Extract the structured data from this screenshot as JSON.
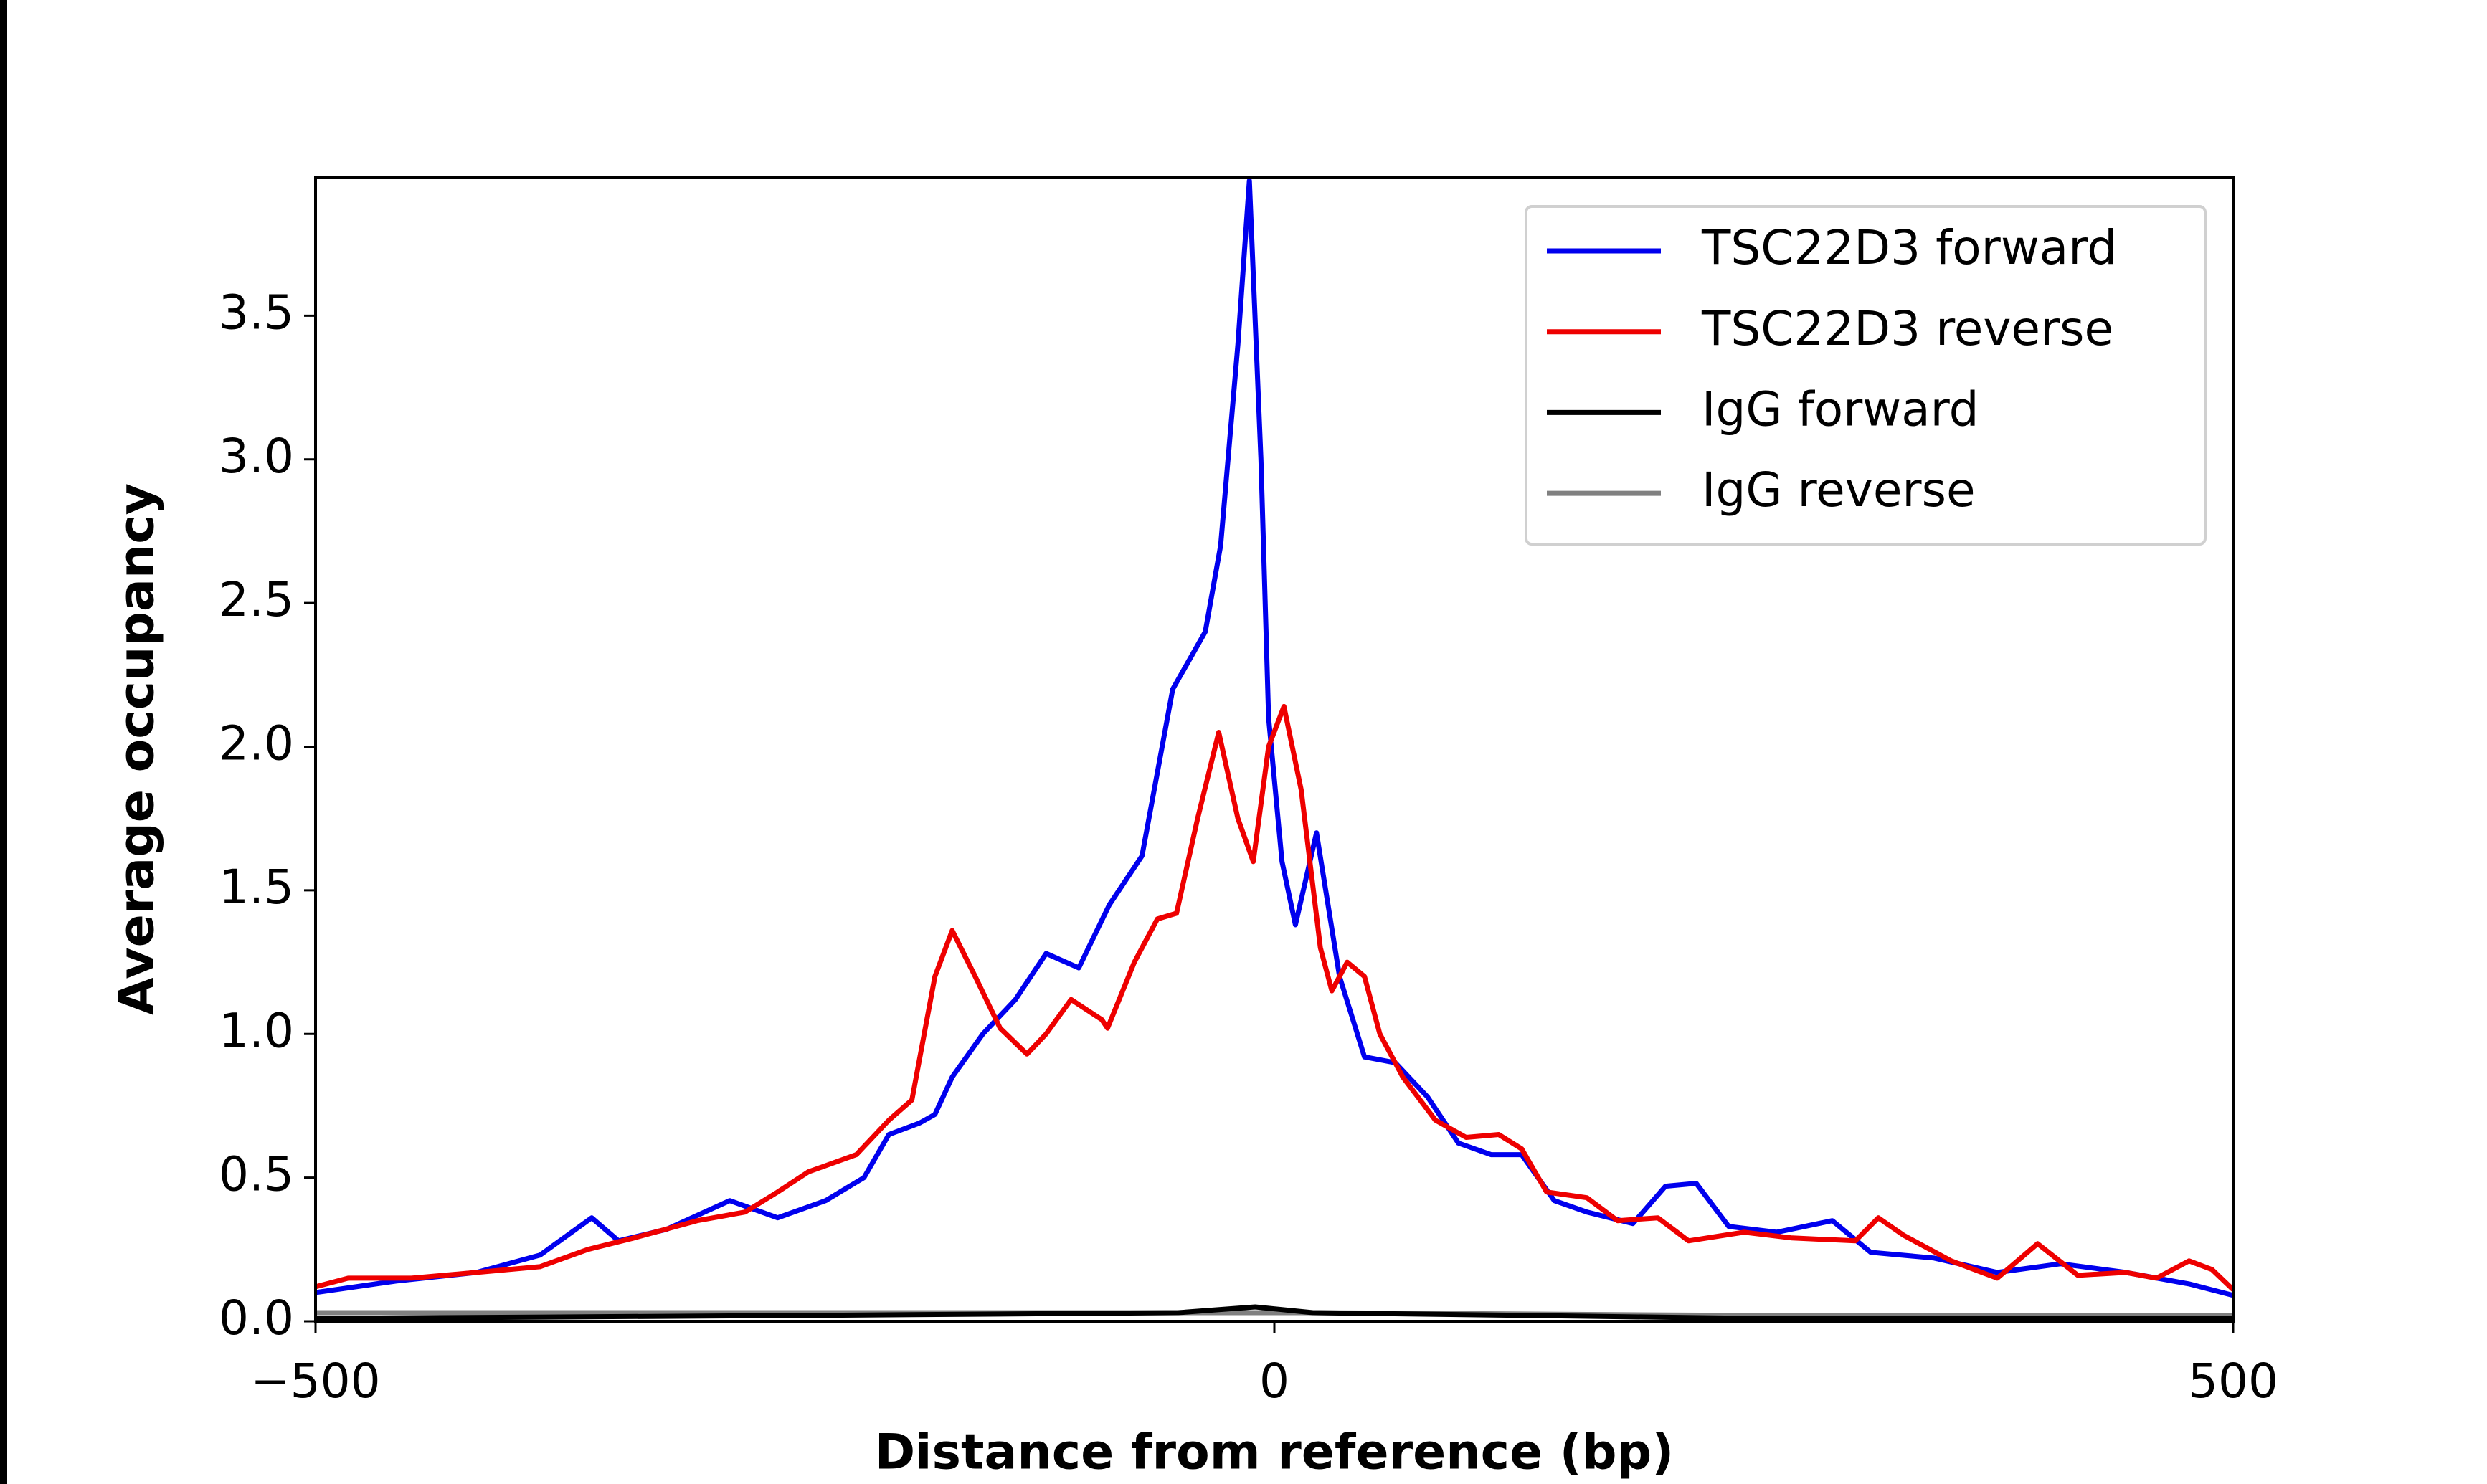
{
  "chart_data": {
    "type": "line",
    "xlabel": "Distance from reference (bp)",
    "ylabel": "Average occupancy",
    "xlim": [
      -500,
      500
    ],
    "xticks": [
      {
        "value": -500,
        "label": "−500"
      },
      0,
      500
    ],
    "ylim": [
      0,
      3.98
    ],
    "yticks": [
      {
        "value": 0,
        "label": "0.0"
      },
      0.5,
      {
        "value": 1,
        "label": "1.0"
      },
      1.5,
      {
        "value": 2,
        "label": "2.0"
      },
      2.5,
      {
        "value": 3,
        "label": "3.0"
      },
      3.5
    ],
    "legend": "upper right",
    "series": [
      {
        "name": "TSC22D3 forward",
        "color": "#0000ee",
        "x": [
          -500,
          -458,
          -416,
          -383,
          -356,
          -342,
          -317,
          -284,
          -259,
          -234,
          -214,
          -201,
          -185,
          -177,
          -168,
          -152,
          -135,
          -119,
          -102,
          -86,
          -69,
          -53,
          -36,
          -28,
          -19,
          -13,
          -7,
          -3,
          4,
          11,
          22,
          34,
          47,
          63,
          80,
          96,
          113,
          129,
          146,
          163,
          187,
          204,
          220,
          237,
          262,
          291,
          311,
          344,
          377,
          410,
          444,
          477,
          500
        ],
        "values": [
          0.1,
          0.14,
          0.17,
          0.23,
          0.36,
          0.28,
          0.32,
          0.42,
          0.36,
          0.42,
          0.5,
          0.65,
          0.69,
          0.72,
          0.85,
          1.0,
          1.12,
          1.28,
          1.23,
          1.45,
          1.62,
          2.2,
          2.4,
          2.7,
          3.4,
          3.97,
          3.0,
          2.1,
          1.6,
          1.38,
          1.7,
          1.2,
          0.92,
          0.9,
          0.78,
          0.62,
          0.58,
          0.58,
          0.42,
          0.38,
          0.34,
          0.47,
          0.48,
          0.33,
          0.31,
          0.35,
          0.24,
          0.22,
          0.17,
          0.2,
          0.17,
          0.13,
          0.09
        ]
      },
      {
        "name": "TSC22D3 reverse",
        "color": "#ee0000",
        "x": [
          -500,
          -483,
          -450,
          -416,
          -383,
          -358,
          -334,
          -301,
          -276,
          -259,
          -243,
          -218,
          -201,
          -189,
          -177,
          -168,
          -156,
          -143,
          -129,
          -119,
          -106,
          -90,
          -87,
          -73,
          -61,
          -51,
          -40,
          -29,
          -19,
          -11,
          -3,
          5,
          14,
          24,
          30,
          38,
          47,
          55,
          67,
          84,
          100,
          117,
          129,
          142,
          163,
          179,
          200,
          216,
          245,
          270,
          303,
          315,
          328,
          353,
          377,
          398,
          419,
          444,
          460,
          477,
          489,
          500
        ],
        "values": [
          0.12,
          0.15,
          0.15,
          0.17,
          0.19,
          0.25,
          0.29,
          0.35,
          0.38,
          0.45,
          0.52,
          0.58,
          0.7,
          0.77,
          1.2,
          1.36,
          1.2,
          1.02,
          0.93,
          1.0,
          1.12,
          1.05,
          1.02,
          1.25,
          1.4,
          1.42,
          1.75,
          2.05,
          1.75,
          1.6,
          2.0,
          2.14,
          1.85,
          1.3,
          1.15,
          1.25,
          1.2,
          1.0,
          0.85,
          0.7,
          0.64,
          0.65,
          0.6,
          0.45,
          0.43,
          0.35,
          0.36,
          0.28,
          0.31,
          0.29,
          0.28,
          0.36,
          0.3,
          0.21,
          0.15,
          0.27,
          0.16,
          0.17,
          0.15,
          0.21,
          0.18,
          0.11
        ]
      },
      {
        "name": "IgG forward",
        "color": "#000000",
        "x": [
          -500,
          -250,
          -50,
          -10,
          20,
          250,
          500
        ],
        "values": [
          0.01,
          0.02,
          0.03,
          0.05,
          0.03,
          0.01,
          0.01
        ]
      },
      {
        "name": "IgG reverse",
        "color": "#808080",
        "x": [
          -500,
          -250,
          -50,
          -10,
          20,
          250,
          500
        ],
        "values": [
          0.03,
          0.03,
          0.03,
          0.03,
          0.03,
          0.02,
          0.02
        ]
      }
    ]
  }
}
